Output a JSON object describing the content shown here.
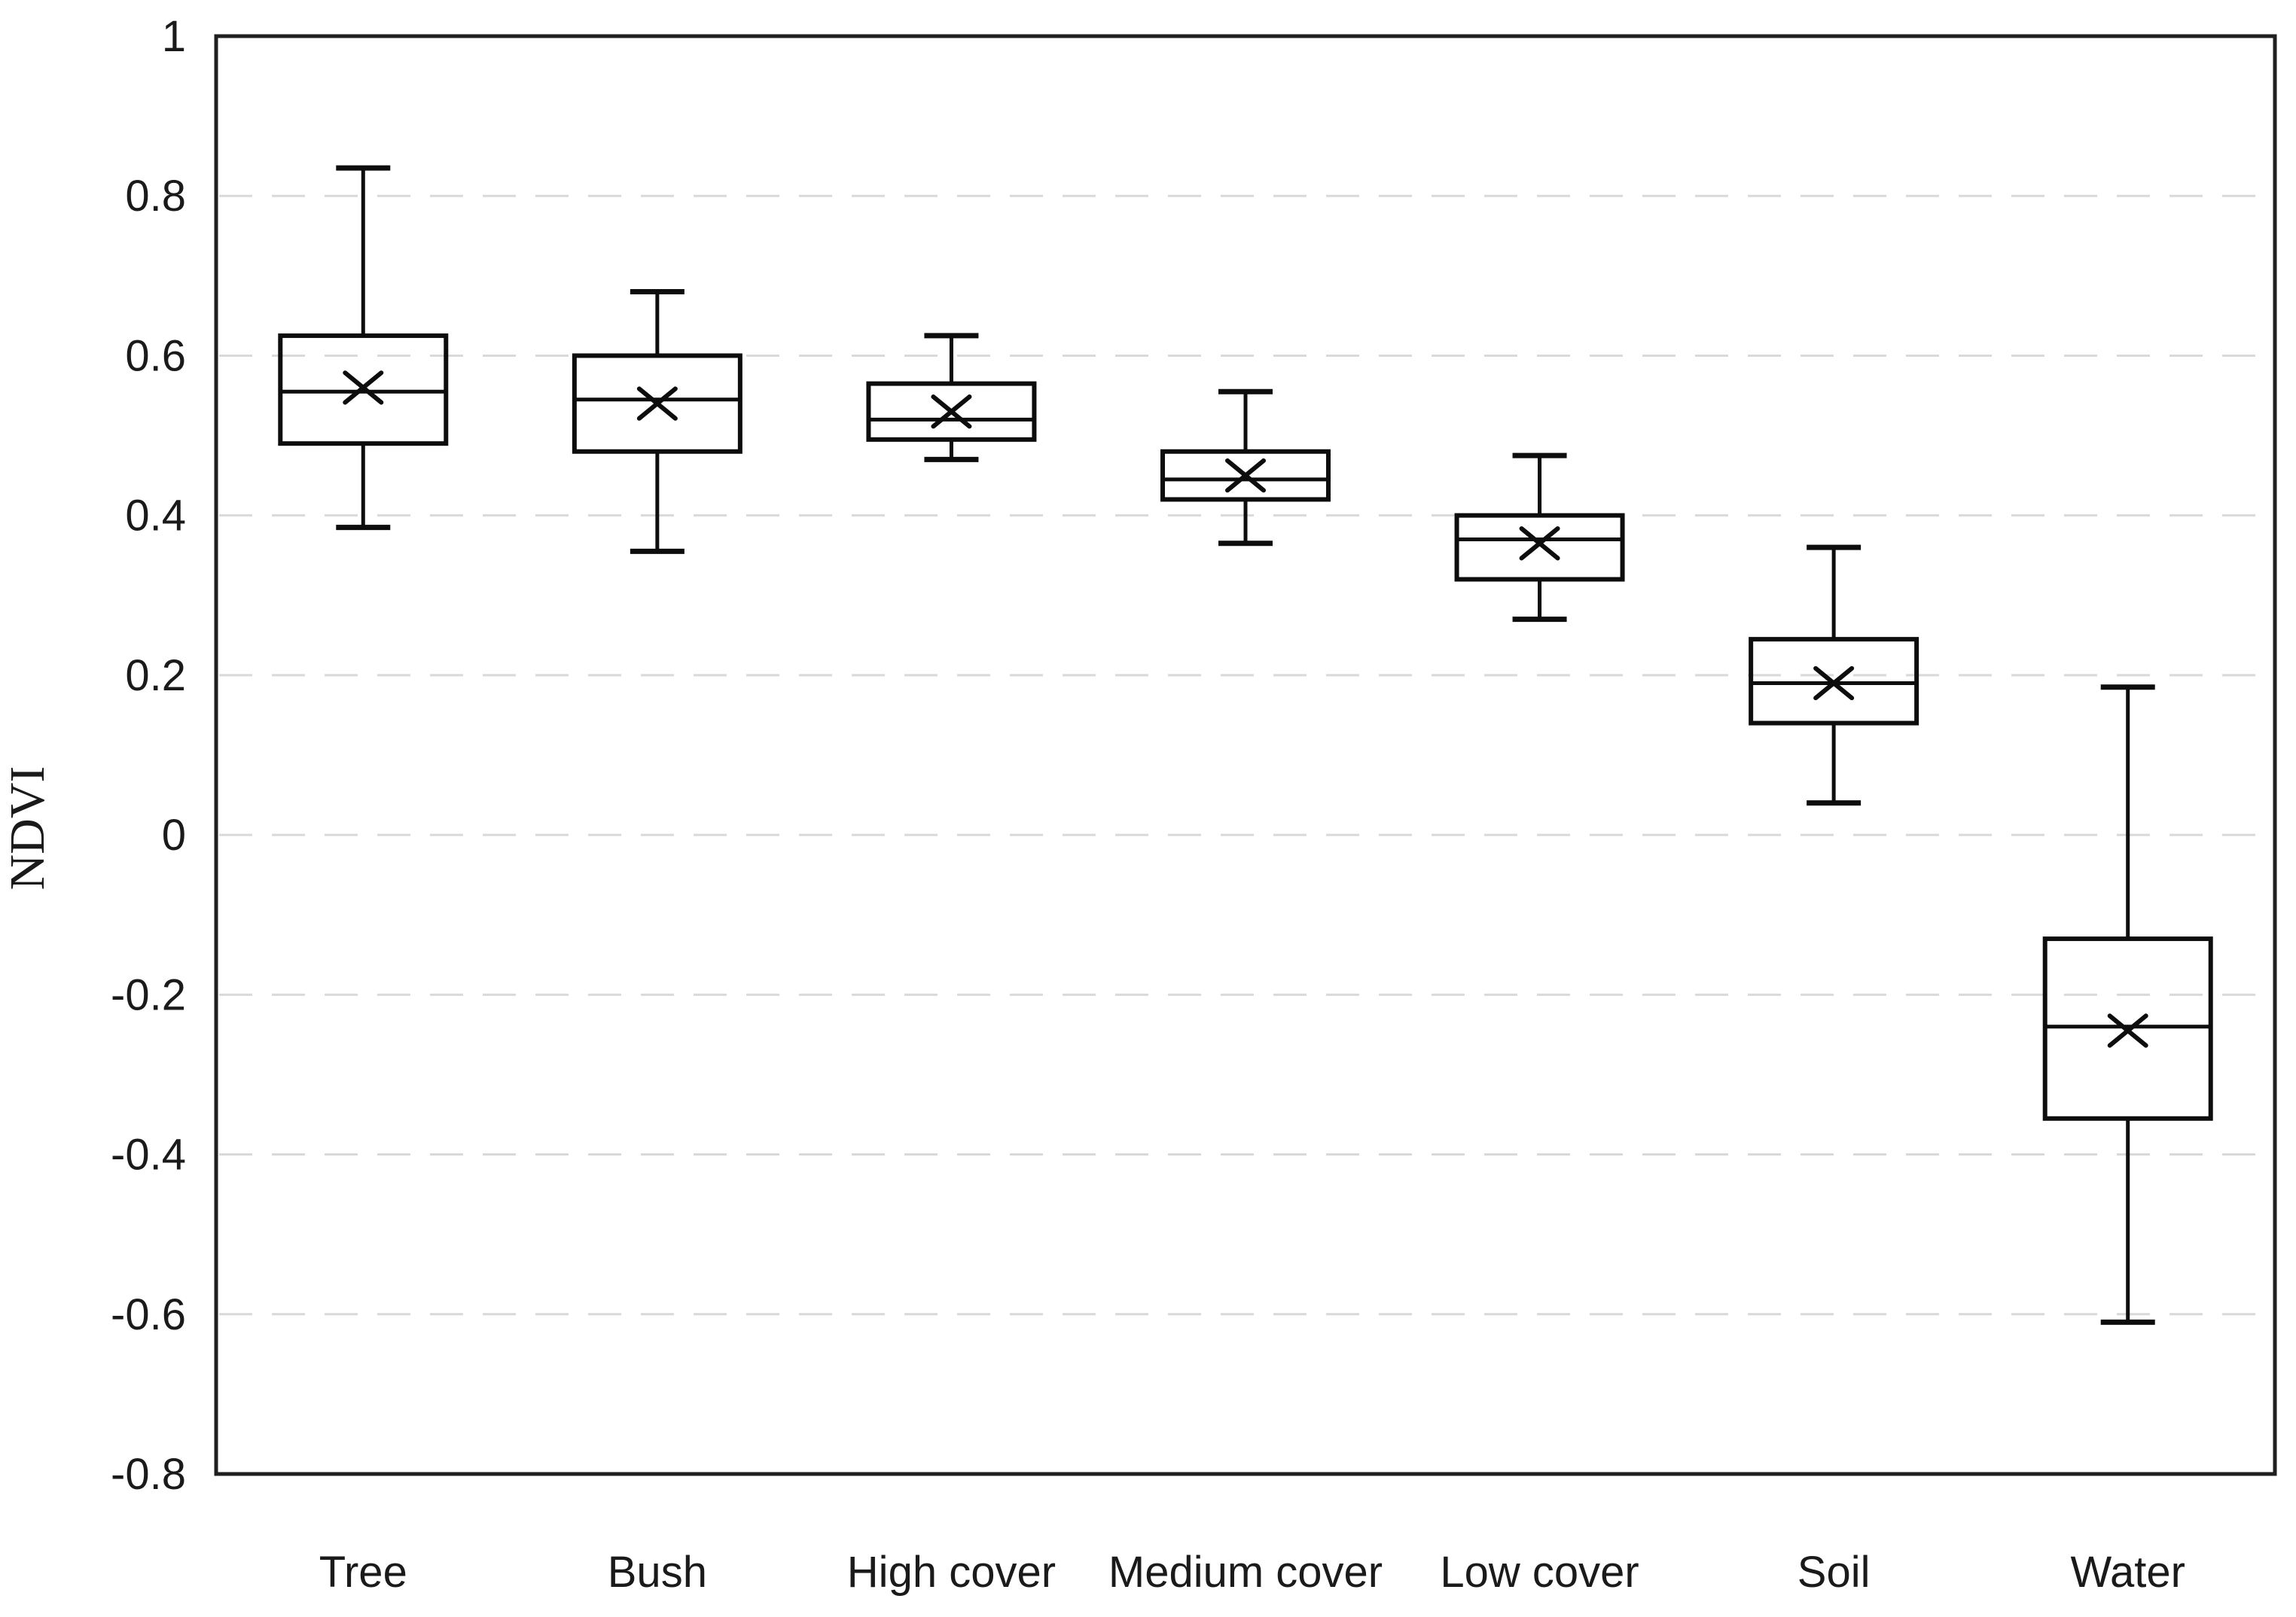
{
  "figure": {
    "ylabel": "NDVI",
    "colors": {
      "background": "#ffffff",
      "frame": "#1f1f1f",
      "gridline": "#d9d9d9",
      "box_stroke": "#0d0d0d",
      "text": "#1a1a1a"
    }
  },
  "chart_data": {
    "type": "boxplot",
    "title": "",
    "xlabel": "",
    "ylabel": "NDVI",
    "ylim": [
      -0.8,
      1.0
    ],
    "ytick_step": 0.2,
    "yticks": [
      1,
      0.8,
      0.6,
      0.4,
      0.2,
      0,
      -0.2,
      -0.4,
      -0.6,
      -0.8
    ],
    "ytick_labels": [
      "1",
      "0.8",
      "0.6",
      "0.4",
      "0.2",
      "0",
      "-0.2",
      "-0.4",
      "-0.6",
      "-0.8"
    ],
    "grid": "horizontal-dashed",
    "legend": "none",
    "mean_marker": "x",
    "categories": [
      "Tree",
      "Bush",
      "High cover",
      "Medium cover",
      "Low cover",
      "Soil",
      "Water"
    ],
    "series": [
      {
        "name": "Tree",
        "whisker_low": 0.385,
        "q1": 0.49,
        "median": 0.555,
        "mean": 0.56,
        "q3": 0.625,
        "whisker_high": 0.835
      },
      {
        "name": "Bush",
        "whisker_low": 0.355,
        "q1": 0.48,
        "median": 0.545,
        "mean": 0.54,
        "q3": 0.6,
        "whisker_high": 0.68
      },
      {
        "name": "High cover",
        "whisker_low": 0.47,
        "q1": 0.495,
        "median": 0.52,
        "mean": 0.53,
        "q3": 0.565,
        "whisker_high": 0.625
      },
      {
        "name": "Medium cover",
        "whisker_low": 0.365,
        "q1": 0.42,
        "median": 0.445,
        "mean": 0.45,
        "q3": 0.48,
        "whisker_high": 0.555
      },
      {
        "name": "Low cover",
        "whisker_low": 0.27,
        "q1": 0.32,
        "median": 0.37,
        "mean": 0.365,
        "q3": 0.4,
        "whisker_high": 0.475
      },
      {
        "name": "Soil",
        "whisker_low": 0.04,
        "q1": 0.14,
        "median": 0.19,
        "mean": 0.19,
        "q3": 0.245,
        "whisker_high": 0.36
      },
      {
        "name": "Water",
        "whisker_low": -0.61,
        "q1": -0.355,
        "median": -0.24,
        "mean": -0.245,
        "q3": -0.13,
        "whisker_high": 0.185
      }
    ]
  }
}
